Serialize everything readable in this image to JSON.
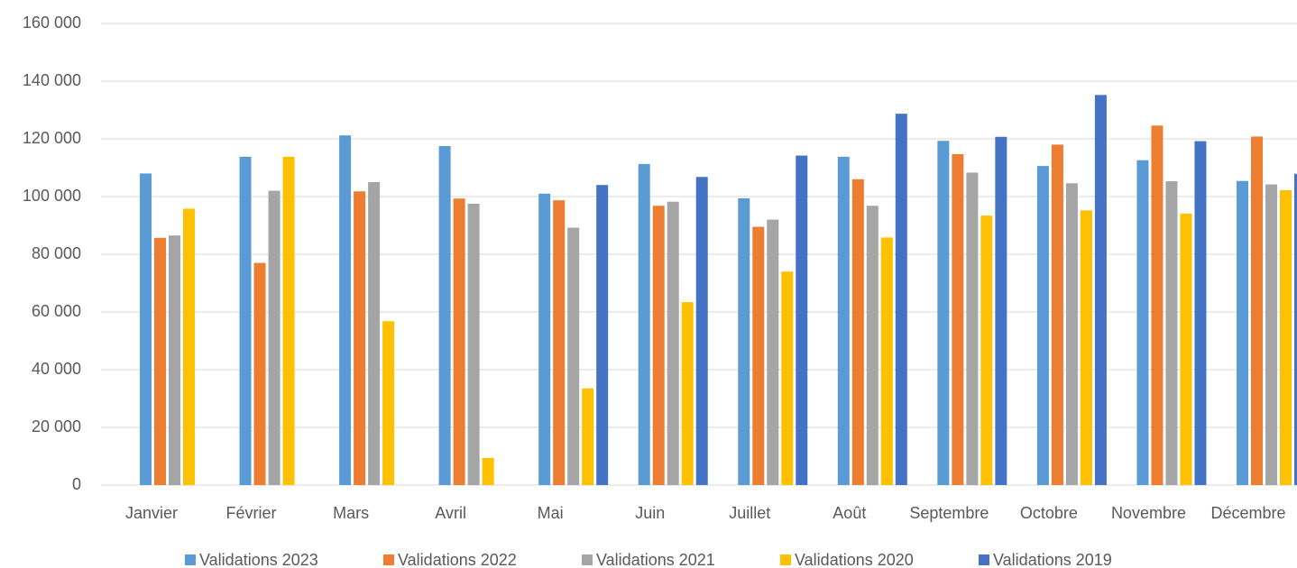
{
  "chart_data": {
    "type": "bar",
    "categories": [
      "Janvier",
      "Février",
      "Mars",
      "Avril",
      "Mai",
      "Juin",
      "Juillet",
      "Août",
      "Septembre",
      "Octobre",
      "Novembre",
      "Décembre"
    ],
    "series": [
      {
        "name": "Validations 2023",
        "color": "#5b9bd5",
        "values": [
          108000,
          113800,
          121200,
          117500,
          101000,
          111300,
          99400,
          113800,
          119300,
          110600,
          112600,
          105400
        ]
      },
      {
        "name": "Validations 2022",
        "color": "#ed7d31",
        "values": [
          85700,
          77000,
          101800,
          99300,
          98700,
          96800,
          89500,
          106000,
          114700,
          118000,
          124600,
          120800
        ]
      },
      {
        "name": "Validations 2021",
        "color": "#a5a5a5",
        "values": [
          86500,
          102000,
          105000,
          97500,
          89200,
          98200,
          92000,
          96800,
          108300,
          104600,
          105300,
          104200
        ]
      },
      {
        "name": "Validations 2020",
        "color": "#ffc000",
        "values": [
          95800,
          113800,
          56800,
          9400,
          33500,
          63400,
          74000,
          85800,
          93400,
          95200,
          94100,
          102200
        ]
      },
      {
        "name": "Validations 2019",
        "color": "#4472c4",
        "values": [
          null,
          null,
          null,
          null,
          104000,
          106800,
          114200,
          128700,
          120700,
          135200,
          119200,
          107900
        ]
      }
    ],
    "ylim": [
      0,
      160000
    ],
    "yticks": [
      0,
      {
        "value": 20000,
        "label": "20 000"
      },
      {
        "value": 40000,
        "label": "40 000"
      },
      {
        "value": 60000,
        "label": "60 000"
      },
      {
        "value": 80000,
        "label": "80 000"
      },
      {
        "value": 100000,
        "label": "100 000"
      },
      {
        "value": 120000,
        "label": "120 000"
      },
      {
        "value": 140000,
        "label": "140 000"
      },
      {
        "value": 160000,
        "label": "160 000"
      }
    ],
    "grid": true,
    "legend": "bottom"
  }
}
